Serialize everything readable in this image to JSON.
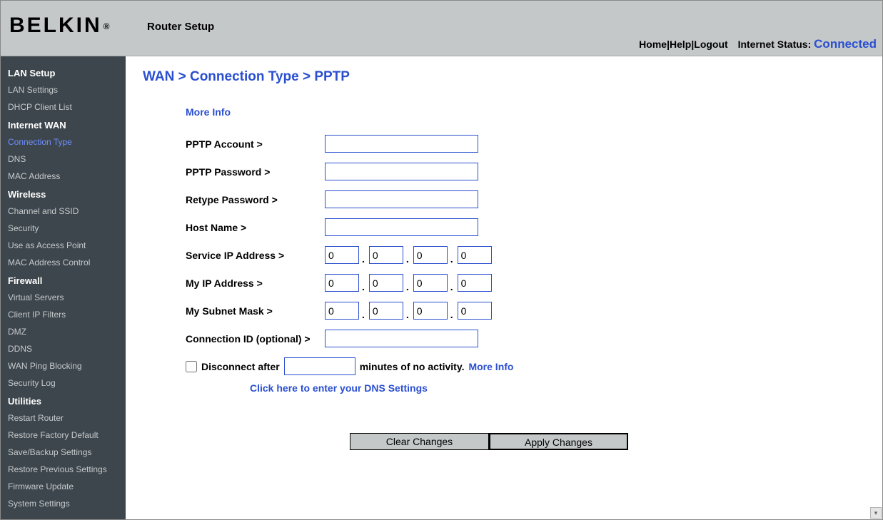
{
  "header": {
    "brand": "BELKIN",
    "brand_suffix": "®",
    "title": "Router Setup",
    "links": {
      "home": "Home",
      "help": "Help",
      "logout": "Logout"
    },
    "status_label": "Internet Status:",
    "status_value": "Connected"
  },
  "sidebar": {
    "groups": [
      {
        "header": "LAN Setup",
        "items": [
          "LAN Settings",
          "DHCP Client List"
        ]
      },
      {
        "header": "Internet WAN",
        "items": [
          "Connection Type",
          "DNS",
          "MAC Address"
        ],
        "active_index": 0
      },
      {
        "header": "Wireless",
        "items": [
          "Channel and SSID",
          "Security",
          "Use as Access Point",
          "MAC Address Control"
        ]
      },
      {
        "header": "Firewall",
        "items": [
          "Virtual Servers",
          "Client IP Filters",
          "DMZ",
          "DDNS",
          "WAN Ping Blocking",
          "Security Log"
        ]
      },
      {
        "header": "Utilities",
        "items": [
          "Restart Router",
          "Restore Factory Default",
          "Save/Backup Settings",
          "Restore Previous Settings",
          "Firmware Update",
          "System Settings"
        ]
      }
    ]
  },
  "main": {
    "breadcrumb": "WAN > Connection Type > PPTP",
    "more_info": "More Info",
    "fields": {
      "pptp_account": {
        "label": "PPTP Account >",
        "value": ""
      },
      "pptp_password": {
        "label": "PPTP Password >",
        "value": ""
      },
      "retype_password": {
        "label": "Retype Password >",
        "value": ""
      },
      "host_name": {
        "label": "Host Name >",
        "value": ""
      },
      "service_ip": {
        "label": "Service IP Address >",
        "octets": [
          "0",
          "0",
          "0",
          "0"
        ]
      },
      "my_ip": {
        "label": "My IP Address >",
        "octets": [
          "0",
          "0",
          "0",
          "0"
        ]
      },
      "subnet_mask": {
        "label": "My Subnet Mask >",
        "octets": [
          "0",
          "0",
          "0",
          "0"
        ]
      },
      "connection_id": {
        "label": "Connection ID (optional) >",
        "value": ""
      }
    },
    "disconnect": {
      "checked": false,
      "prefix": "Disconnect after",
      "minutes_value": "",
      "suffix": "minutes of no activity.",
      "more_info": "More Info"
    },
    "dns_link": "Click here to enter your DNS Settings",
    "buttons": {
      "clear": "Clear Changes",
      "apply": "Apply Changes"
    }
  },
  "style": {
    "accent_color": "#2a4fd0",
    "header_bg": "#c4c8c9",
    "sidebar_bg": "#3d464c",
    "sidebar_text": "#c6cacd",
    "sidebar_header_text": "#ffffff",
    "input_border": "#2a4fd0",
    "button_bg": "#c4c8c9"
  }
}
